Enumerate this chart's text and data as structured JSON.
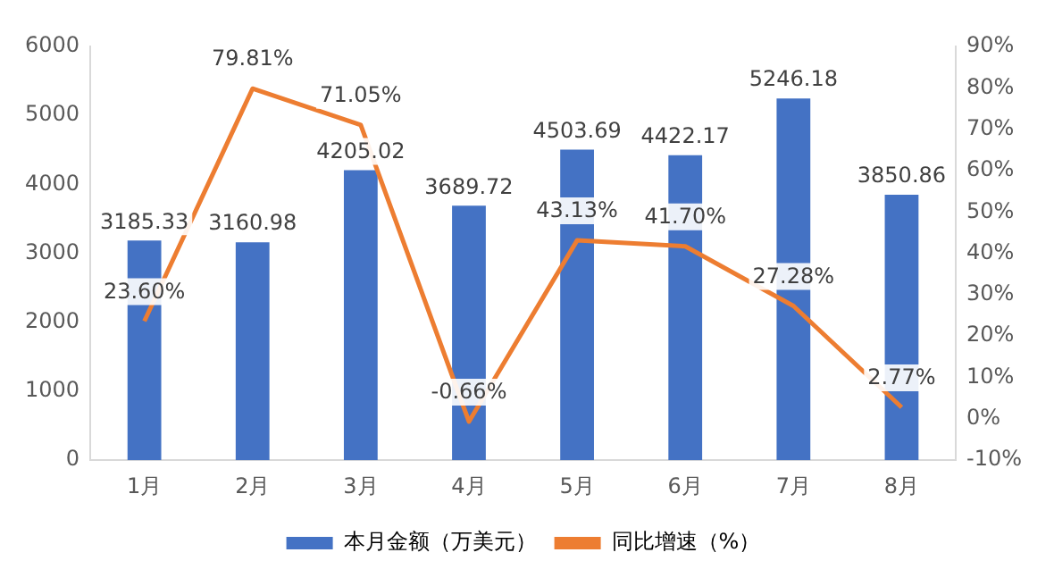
{
  "chart_data": {
    "type": "bar",
    "categories": [
      "1月",
      "2月",
      "3月",
      "4月",
      "5月",
      "6月",
      "7月",
      "8月"
    ],
    "series": [
      {
        "name": "本月金额（万美元）",
        "color": "#4472c4",
        "values": [
          3185.33,
          3160.98,
          4205.02,
          3689.72,
          4503.69,
          4422.17,
          5246.18,
          3850.86
        ],
        "value_labels": [
          "3185.33",
          "3160.98",
          "4205.02",
          "3689.72",
          "4503.69",
          "4422.17",
          "5246.18",
          "3850.86"
        ]
      },
      {
        "name": "同比增速（%）",
        "type": "line",
        "axis": "y2",
        "color": "#ed7d31",
        "values": [
          23.6,
          79.81,
          71.05,
          -0.66,
          43.13,
          41.7,
          27.28,
          2.77
        ],
        "value_labels": [
          "23.60%",
          "79.81%",
          "71.05%",
          "-0.66%",
          "43.13%",
          "41.70%",
          "27.28%",
          "2.77%"
        ]
      }
    ],
    "ylim": [
      0,
      6000
    ],
    "yticks": [
      0,
      1000,
      2000,
      3000,
      4000,
      5000,
      6000
    ],
    "y2lim": [
      -10,
      90
    ],
    "y2ticks": [
      {
        "value": -10,
        "label": "-10%"
      },
      {
        "value": 0,
        "label": "0%"
      },
      {
        "value": 10,
        "label": "10%"
      },
      {
        "value": 20,
        "label": "20%"
      },
      {
        "value": 30,
        "label": "30%"
      },
      {
        "value": 40,
        "label": "40%"
      },
      {
        "value": 50,
        "label": "50%"
      },
      {
        "value": 60,
        "label": "60%"
      },
      {
        "value": 70,
        "label": "70%"
      },
      {
        "value": 80,
        "label": "80%"
      },
      {
        "value": 90,
        "label": "90%"
      }
    ],
    "grid": false,
    "legend": "bottom",
    "marker": "none",
    "line_style": "solid"
  }
}
